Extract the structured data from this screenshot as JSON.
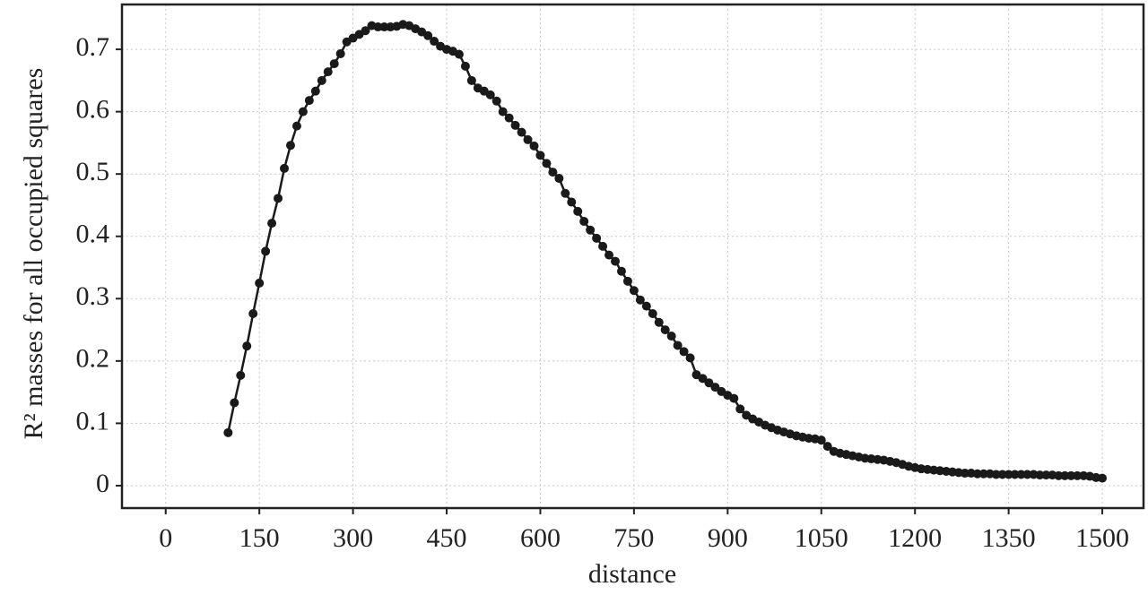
{
  "chart_data": {
    "type": "line",
    "x_label": "distance",
    "y_label": "R² masses for all occupied squares",
    "xlim": [
      -70,
      1566
    ],
    "ylim": [
      -0.036,
      0.772
    ],
    "xticks": [
      0,
      150,
      300,
      450,
      600,
      750,
      900,
      1050,
      1200,
      1350,
      1500
    ],
    "yticks": [
      0,
      0.1,
      0.2,
      0.3,
      0.4,
      0.5,
      0.6,
      0.7
    ],
    "grid": true,
    "markers": true,
    "x": [
      100,
      110,
      120,
      130,
      140,
      150,
      160,
      170,
      180,
      190,
      200,
      210,
      220,
      230,
      240,
      250,
      260,
      270,
      280,
      290,
      300,
      310,
      320,
      330,
      340,
      350,
      360,
      370,
      380,
      390,
      400,
      410,
      420,
      430,
      440,
      450,
      460,
      470,
      480,
      490,
      500,
      510,
      520,
      530,
      540,
      550,
      560,
      570,
      580,
      590,
      600,
      610,
      620,
      630,
      640,
      650,
      660,
      670,
      680,
      690,
      700,
      710,
      720,
      730,
      740,
      750,
      760,
      770,
      780,
      790,
      800,
      810,
      820,
      830,
      840,
      850,
      860,
      870,
      880,
      890,
      900,
      910,
      920,
      930,
      940,
      950,
      960,
      970,
      980,
      990,
      1000,
      1010,
      1020,
      1030,
      1040,
      1050,
      1060,
      1070,
      1080,
      1090,
      1100,
      1110,
      1120,
      1130,
      1140,
      1150,
      1160,
      1170,
      1180,
      1190,
      1200,
      1210,
      1220,
      1230,
      1240,
      1250,
      1260,
      1270,
      1280,
      1290,
      1300,
      1310,
      1320,
      1330,
      1340,
      1350,
      1360,
      1370,
      1380,
      1390,
      1400,
      1410,
      1420,
      1430,
      1440,
      1450,
      1460,
      1470,
      1480,
      1490,
      1500
    ],
    "series": [
      {
        "color": "#1a1a1a",
        "values": [
          0.085,
          0.133,
          0.177,
          0.224,
          0.276,
          0.325,
          0.376,
          0.421,
          0.461,
          0.509,
          0.546,
          0.577,
          0.6,
          0.618,
          0.633,
          0.65,
          0.664,
          0.677,
          0.693,
          0.712,
          0.718,
          0.724,
          0.73,
          0.738,
          0.736,
          0.736,
          0.736,
          0.737,
          0.74,
          0.738,
          0.733,
          0.728,
          0.722,
          0.713,
          0.705,
          0.7,
          0.697,
          0.692,
          0.673,
          0.65,
          0.638,
          0.633,
          0.627,
          0.617,
          0.6,
          0.59,
          0.578,
          0.567,
          0.555,
          0.545,
          0.53,
          0.517,
          0.503,
          0.493,
          0.469,
          0.455,
          0.44,
          0.424,
          0.41,
          0.397,
          0.384,
          0.37,
          0.36,
          0.344,
          0.328,
          0.313,
          0.298,
          0.288,
          0.276,
          0.262,
          0.25,
          0.24,
          0.225,
          0.215,
          0.205,
          0.178,
          0.172,
          0.165,
          0.158,
          0.151,
          0.145,
          0.14,
          0.123,
          0.113,
          0.107,
          0.102,
          0.097,
          0.093,
          0.089,
          0.086,
          0.083,
          0.08,
          0.078,
          0.076,
          0.075,
          0.073,
          0.063,
          0.055,
          0.052,
          0.05,
          0.048,
          0.046,
          0.044,
          0.043,
          0.042,
          0.041,
          0.039,
          0.037,
          0.034,
          0.031,
          0.029,
          0.027,
          0.026,
          0.025,
          0.024,
          0.023,
          0.022,
          0.021,
          0.02,
          0.02,
          0.019,
          0.019,
          0.019,
          0.018,
          0.018,
          0.018,
          0.018,
          0.018,
          0.018,
          0.018,
          0.017,
          0.017,
          0.017,
          0.016,
          0.016,
          0.016,
          0.016,
          0.016,
          0.015,
          0.013,
          0.012
        ]
      }
    ]
  }
}
